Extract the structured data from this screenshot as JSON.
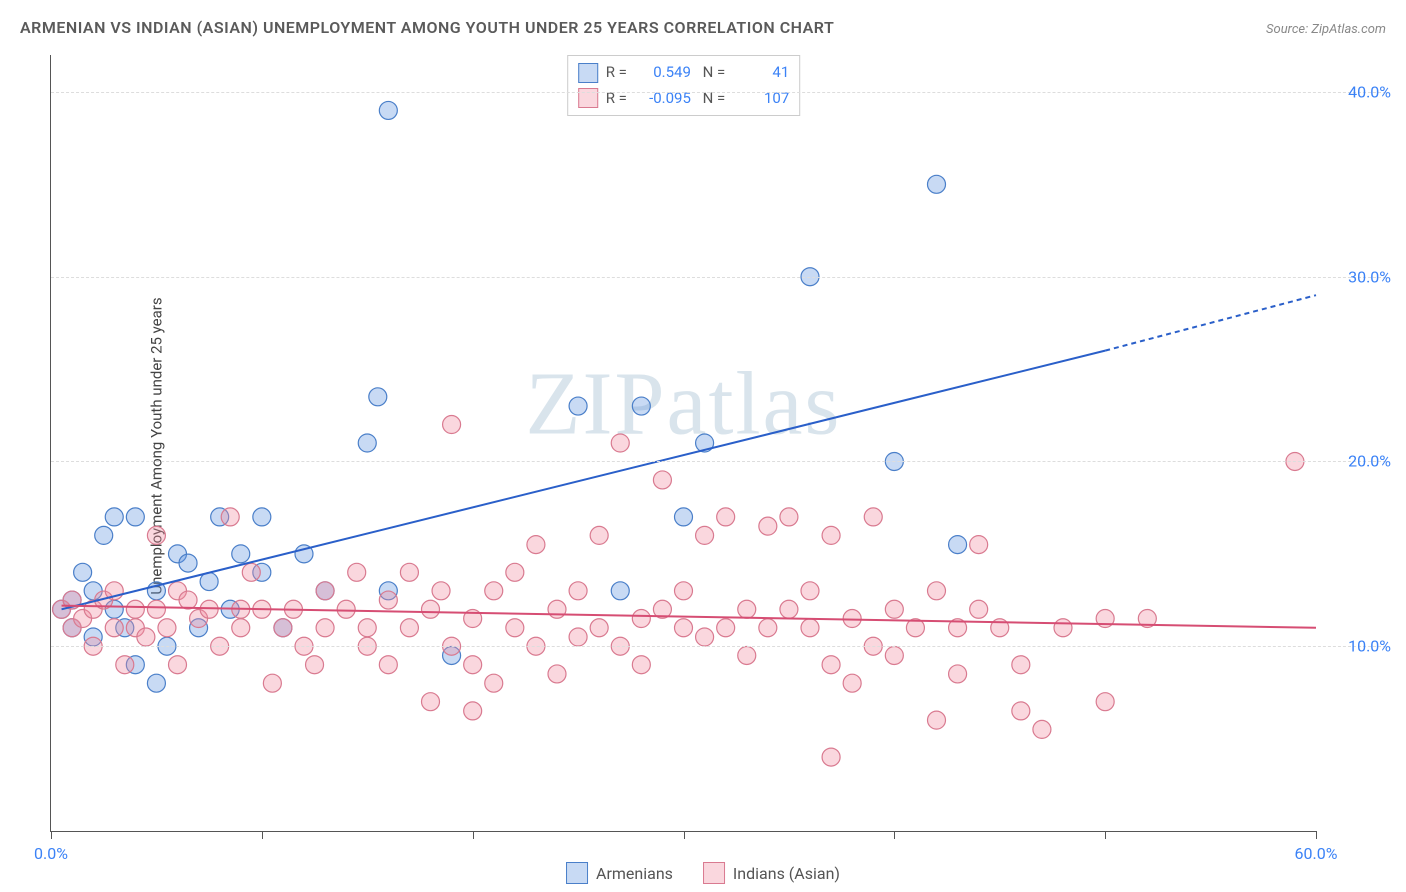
{
  "title": "ARMENIAN VS INDIAN (ASIAN) UNEMPLOYMENT AMONG YOUTH UNDER 25 YEARS CORRELATION CHART",
  "source": "Source: ZipAtlas.com",
  "ylabel": "Unemployment Among Youth under 25 years",
  "watermark": "ZIPatlas",
  "chart": {
    "type": "scatter",
    "xlim": [
      0,
      60
    ],
    "ylim": [
      0,
      42
    ],
    "xticks": [
      0,
      10,
      20,
      30,
      40,
      50,
      60
    ],
    "xtick_labels": {
      "0": "0.0%",
      "60": "60.0%"
    },
    "yticks": [
      10,
      20,
      30,
      40
    ],
    "ytick_labels": {
      "10": "10.0%",
      "20": "20.0%",
      "30": "30.0%",
      "40": "40.0%"
    },
    "background": "#ffffff",
    "grid_color": "#dddddd",
    "axis_color": "#555555",
    "series": [
      {
        "name": "Armenians",
        "color_fill": "rgba(96,150,224,0.35)",
        "color_stroke": "#4a7fc9",
        "marker_radius": 9,
        "r": 0.549,
        "n": 41,
        "trend": {
          "x1": 0.5,
          "y1": 12,
          "x2": 50,
          "y2": 26,
          "color": "#2a5fc9",
          "width": 2,
          "dash_x2": 60,
          "dash_y2": 29
        },
        "points": [
          [
            0.5,
            12
          ],
          [
            1,
            12.5
          ],
          [
            1,
            11
          ],
          [
            1.5,
            14
          ],
          [
            2,
            13
          ],
          [
            2,
            10.5
          ],
          [
            2.5,
            16
          ],
          [
            3,
            17
          ],
          [
            3.5,
            11
          ],
          [
            4,
            9
          ],
          [
            4,
            17
          ],
          [
            5,
            13
          ],
          [
            5,
            8
          ],
          [
            6,
            15
          ],
          [
            6.5,
            14.5
          ],
          [
            7,
            11
          ],
          [
            7.5,
            13.5
          ],
          [
            8,
            17
          ],
          [
            9,
            15
          ],
          [
            10,
            14
          ],
          [
            10,
            17
          ],
          [
            11,
            11
          ],
          [
            12,
            15
          ],
          [
            13,
            13
          ],
          [
            15,
            21
          ],
          [
            15.5,
            23.5
          ],
          [
            16,
            39
          ],
          [
            16,
            13
          ],
          [
            19,
            9.5
          ],
          [
            25,
            23
          ],
          [
            27,
            13
          ],
          [
            28,
            23
          ],
          [
            30,
            17
          ],
          [
            31,
            21
          ],
          [
            36,
            30
          ],
          [
            40,
            20
          ],
          [
            42,
            35
          ],
          [
            43,
            15.5
          ],
          [
            3,
            12
          ],
          [
            5.5,
            10
          ],
          [
            8.5,
            12
          ]
        ]
      },
      {
        "name": "Indians (Asian)",
        "color_fill": "rgba(240,140,160,0.35)",
        "color_stroke": "#d97a90",
        "marker_radius": 9,
        "r": -0.095,
        "n": 107,
        "trend": {
          "x1": 0.5,
          "y1": 12.2,
          "x2": 60,
          "y2": 11,
          "color": "#d64d73",
          "width": 2
        },
        "points": [
          [
            0.5,
            12
          ],
          [
            1,
            11
          ],
          [
            1,
            12.5
          ],
          [
            1.5,
            11.5
          ],
          [
            2,
            12
          ],
          [
            2,
            10
          ],
          [
            2.5,
            12.5
          ],
          [
            3,
            11
          ],
          [
            3,
            13
          ],
          [
            3.5,
            9
          ],
          [
            4,
            12
          ],
          [
            4,
            11
          ],
          [
            4.5,
            10.5
          ],
          [
            5,
            12
          ],
          [
            5,
            16
          ],
          [
            5.5,
            11
          ],
          [
            6,
            13
          ],
          [
            6,
            9
          ],
          [
            6.5,
            12.5
          ],
          [
            7,
            11.5
          ],
          [
            7.5,
            12
          ],
          [
            8,
            10
          ],
          [
            8.5,
            17
          ],
          [
            9,
            11
          ],
          [
            9,
            12
          ],
          [
            9.5,
            14
          ],
          [
            10,
            12
          ],
          [
            10.5,
            8
          ],
          [
            11,
            11
          ],
          [
            11.5,
            12
          ],
          [
            12,
            10
          ],
          [
            12.5,
            9
          ],
          [
            13,
            13
          ],
          [
            13,
            11
          ],
          [
            14,
            12
          ],
          [
            14.5,
            14
          ],
          [
            15,
            11
          ],
          [
            15,
            10
          ],
          [
            16,
            12.5
          ],
          [
            16,
            9
          ],
          [
            17,
            11
          ],
          [
            17,
            14
          ],
          [
            18,
            12
          ],
          [
            18,
            7
          ],
          [
            18.5,
            13
          ],
          [
            19,
            10
          ],
          [
            19,
            22
          ],
          [
            20,
            11.5
          ],
          [
            20,
            9
          ],
          [
            21,
            13
          ],
          [
            21,
            8
          ],
          [
            20,
            6.5
          ],
          [
            22,
            14
          ],
          [
            22,
            11
          ],
          [
            23,
            10
          ],
          [
            23,
            15.5
          ],
          [
            24,
            12
          ],
          [
            24,
            8.5
          ],
          [
            25,
            10.5
          ],
          [
            25,
            13
          ],
          [
            26,
            11
          ],
          [
            26,
            16
          ],
          [
            27,
            10
          ],
          [
            27,
            21
          ],
          [
            28,
            11.5
          ],
          [
            28,
            9
          ],
          [
            29,
            12
          ],
          [
            29,
            19
          ],
          [
            30,
            13
          ],
          [
            30,
            11
          ],
          [
            31,
            10.5
          ],
          [
            31,
            16
          ],
          [
            32,
            11
          ],
          [
            32,
            17
          ],
          [
            33,
            12
          ],
          [
            33,
            9.5
          ],
          [
            34,
            16.5
          ],
          [
            34,
            11
          ],
          [
            35,
            12
          ],
          [
            35,
            17
          ],
          [
            36,
            11
          ],
          [
            36,
            13
          ],
          [
            37,
            9
          ],
          [
            37,
            16
          ],
          [
            38,
            11.5
          ],
          [
            38,
            8
          ],
          [
            39,
            10
          ],
          [
            39,
            17
          ],
          [
            40,
            12
          ],
          [
            40,
            9.5
          ],
          [
            41,
            11
          ],
          [
            42,
            13
          ],
          [
            42,
            6
          ],
          [
            43,
            11
          ],
          [
            43,
            8.5
          ],
          [
            44,
            12
          ],
          [
            44,
            15.5
          ],
          [
            45,
            11
          ],
          [
            46,
            9
          ],
          [
            46,
            6.5
          ],
          [
            47,
            5.5
          ],
          [
            37,
            4
          ],
          [
            48,
            11
          ],
          [
            50,
            11.5
          ],
          [
            50,
            7
          ],
          [
            52,
            11.5
          ],
          [
            59,
            20
          ]
        ]
      }
    ],
    "legend_label_color": "#555555",
    "value_color": "#3b82f6",
    "xtick_label_color": "#3b82f6",
    "ytick_label_color": "#3b82f6"
  }
}
